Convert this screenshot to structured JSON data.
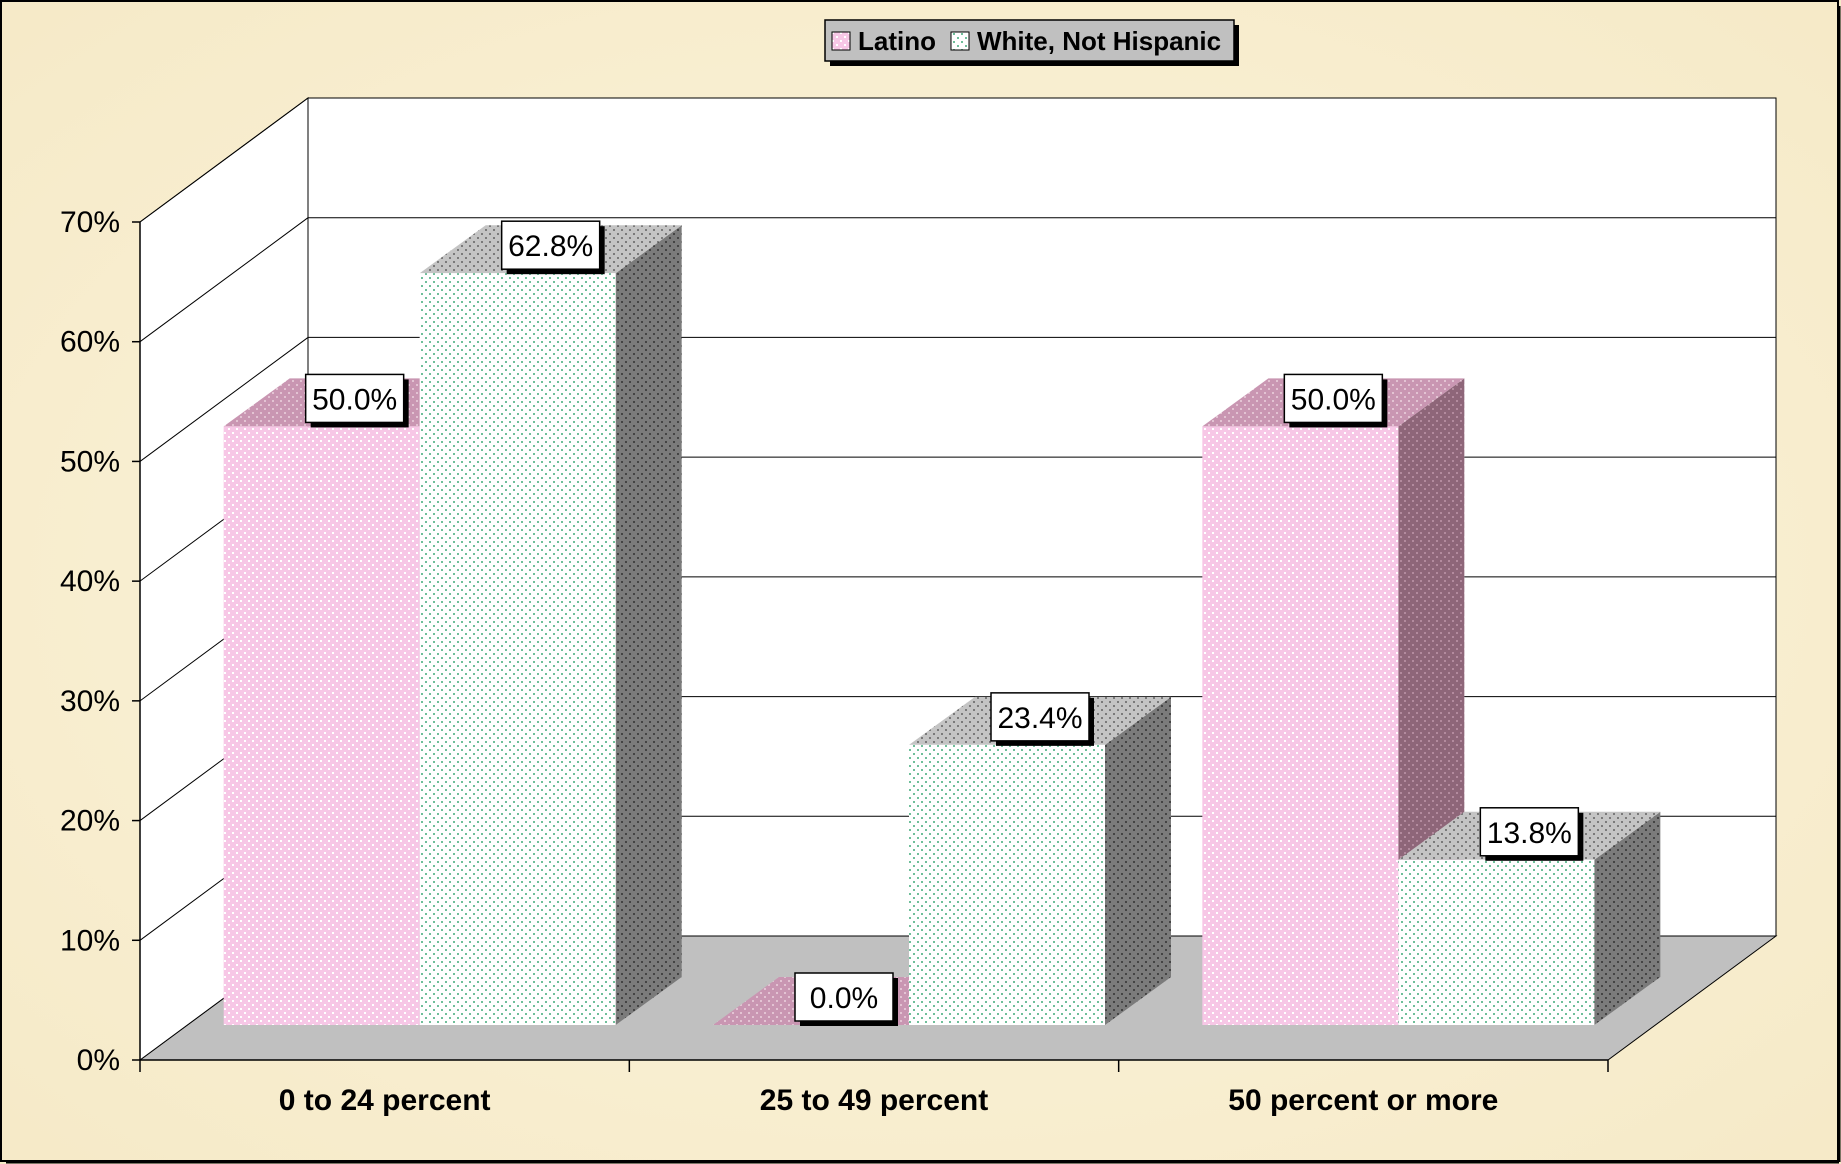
{
  "colors": {
    "background": "#fbf2d8",
    "floor": "#c0c0c0",
    "latino_front": "#f7c7e6",
    "latino_top": "#c996b2",
    "latino_side": "#8e6679",
    "white_front": "#ffffff",
    "white_top": "#c0c0c0",
    "white_side": "#7b7b7b",
    "white_dots": "#6fbf9a"
  },
  "chart_data": {
    "type": "bar",
    "categories": [
      "0 to 24 percent",
      "25 to 49 percent",
      "50 percent or more"
    ],
    "series": [
      {
        "name": "Latino",
        "values": [
          50.0,
          0.0,
          50.0
        ],
        "labels": [
          "50.0%",
          "0.0%",
          "50.0%"
        ]
      },
      {
        "name": "White, Not Hispanic",
        "values": [
          62.8,
          23.4,
          13.8
        ],
        "labels": [
          "62.8%",
          "23.4%",
          "13.8%"
        ]
      }
    ],
    "yticks": [
      0,
      10,
      20,
      30,
      40,
      50,
      60,
      70
    ],
    "ytick_labels": [
      "0%",
      "10%",
      "20%",
      "30%",
      "40%",
      "50%",
      "60%",
      "70%"
    ],
    "ylim": [
      0,
      70
    ],
    "grid": true,
    "legend_position": "top-center",
    "style": "3d-clustered-column"
  }
}
